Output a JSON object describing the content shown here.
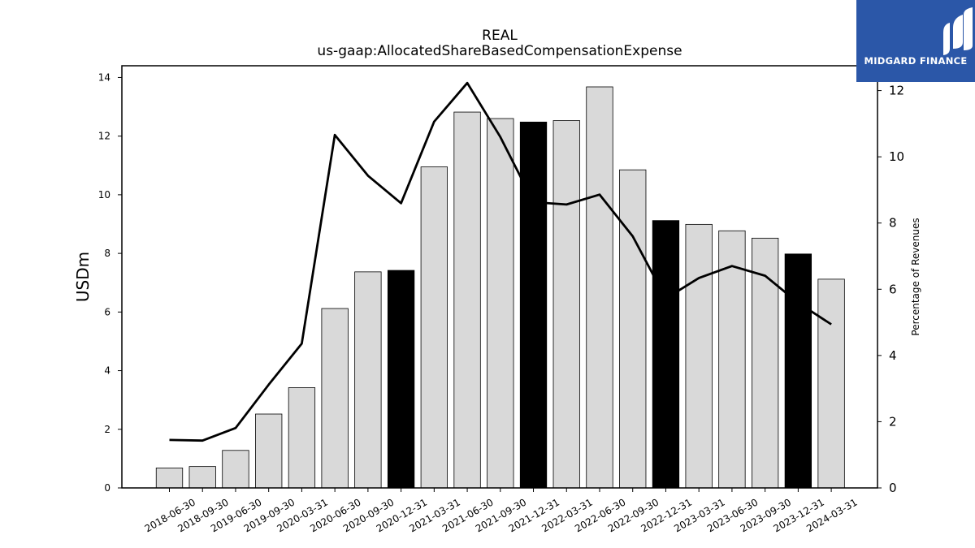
{
  "chart_data": {
    "type": "bar",
    "title": "REAL",
    "subtitle": "us-gaap:AllocatedShareBasedCompensationExpense",
    "ylabel": "USDm",
    "y2label": "Percentage of Revenues",
    "ylim": [
      0,
      14.4
    ],
    "y2lim": [
      0,
      12.75
    ],
    "yticks": [
      0,
      2,
      4,
      6,
      8,
      10,
      12,
      14
    ],
    "y2ticks": [
      0,
      2,
      4,
      6,
      8,
      10,
      12
    ],
    "grid": false,
    "categories": [
      "2018-06-30",
      "2018-09-30",
      "2019-06-30",
      "2019-09-30",
      "2020-03-31",
      "2020-06-30",
      "2020-09-30",
      "2020-12-31",
      "2021-03-31",
      "2021-06-30",
      "2021-09-30",
      "2021-12-31",
      "2022-03-31",
      "2022-06-30",
      "2022-09-30",
      "2022-12-31",
      "2023-03-31",
      "2023-06-30",
      "2023-09-30",
      "2023-12-31",
      "2024-03-31"
    ],
    "series": [
      {
        "kind": "bar",
        "axis": "left",
        "values": [
          0.68,
          0.73,
          1.28,
          2.52,
          3.42,
          6.12,
          7.37,
          7.42,
          10.95,
          12.82,
          12.6,
          12.48,
          12.53,
          13.68,
          10.85,
          9.12,
          8.99,
          8.77,
          8.52,
          7.98,
          7.12
        ],
        "highlight": [
          false,
          false,
          false,
          false,
          false,
          false,
          false,
          true,
          false,
          false,
          false,
          true,
          false,
          false,
          false,
          true,
          false,
          false,
          false,
          true,
          false
        ],
        "colors": {
          "normal": "#d9d9d9",
          "highlight": "#000000"
        }
      },
      {
        "kind": "line",
        "axis": "right",
        "values": [
          1.45,
          1.43,
          1.81,
          3.12,
          4.36,
          10.66,
          9.43,
          8.6,
          11.06,
          12.23,
          10.6,
          8.63,
          8.56,
          8.86,
          7.6,
          5.72,
          6.34,
          6.7,
          6.41,
          5.59,
          4.94
        ],
        "color": "#000000"
      }
    ]
  },
  "logo": {
    "text": "MIDGARD FINANCE",
    "bg_color": "#2b57a8"
  }
}
